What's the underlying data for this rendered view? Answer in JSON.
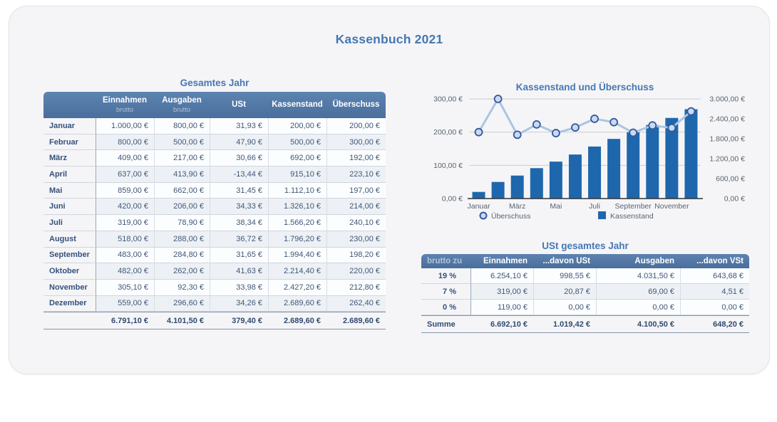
{
  "page_title": "Kassenbuch 2021",
  "colors": {
    "accent_blue": "#4677b4",
    "header_top": "#5d83b1",
    "header_bottom": "#4a6f9d",
    "bar": "#1f67ac",
    "line": "#a9c5e2",
    "marker_fill": "#c9d9f2",
    "marker_stroke": "#33589c",
    "gridline": "#c9cdd2",
    "baseline": "#2e3238"
  },
  "year_table": {
    "title": "Gesamtes Jahr",
    "columns": [
      {
        "label": "",
        "sub": ""
      },
      {
        "label": "Einnahmen",
        "sub": "brutto"
      },
      {
        "label": "Ausgaben",
        "sub": "brutto"
      },
      {
        "label": "USt",
        "sub": ""
      },
      {
        "label": "Kassenstand",
        "sub": ""
      },
      {
        "label": "Überschuss",
        "sub": ""
      }
    ],
    "rows": [
      {
        "label": "Januar",
        "values": [
          "1.000,00 €",
          "800,00 €",
          "31,93 €",
          "200,00 €",
          "200,00 €"
        ]
      },
      {
        "label": "Februar",
        "values": [
          "800,00 €",
          "500,00 €",
          "47,90 €",
          "500,00 €",
          "300,00 €"
        ]
      },
      {
        "label": "März",
        "values": [
          "409,00 €",
          "217,00 €",
          "30,66 €",
          "692,00 €",
          "192,00 €"
        ]
      },
      {
        "label": "April",
        "values": [
          "637,00 €",
          "413,90 €",
          "-13,44 €",
          "915,10 €",
          "223,10 €"
        ]
      },
      {
        "label": "Mai",
        "values": [
          "859,00 €",
          "662,00 €",
          "31,45 €",
          "1.112,10 €",
          "197,00 €"
        ]
      },
      {
        "label": "Juni",
        "values": [
          "420,00 €",
          "206,00 €",
          "34,33 €",
          "1.326,10 €",
          "214,00 €"
        ]
      },
      {
        "label": "Juli",
        "values": [
          "319,00 €",
          "78,90 €",
          "38,34 €",
          "1.566,20 €",
          "240,10 €"
        ]
      },
      {
        "label": "August",
        "values": [
          "518,00 €",
          "288,00 €",
          "36,72 €",
          "1.796,20 €",
          "230,00 €"
        ]
      },
      {
        "label": "September",
        "values": [
          "483,00 €",
          "284,80 €",
          "31,65 €",
          "1.994,40 €",
          "198,20 €"
        ]
      },
      {
        "label": "Oktober",
        "values": [
          "482,00 €",
          "262,00 €",
          "41,63 €",
          "2.214,40 €",
          "220,00 €"
        ]
      },
      {
        "label": "November",
        "values": [
          "305,10 €",
          "92,30 €",
          "33,98 €",
          "2.427,20 €",
          "212,80 €"
        ]
      },
      {
        "label": "Dezember",
        "values": [
          "559,00 €",
          "296,60 €",
          "34,26 €",
          "2.689,60 €",
          "262,40 €"
        ]
      }
    ],
    "sum_row": {
      "label": "",
      "values": [
        "6.791,10 €",
        "4.101,50 €",
        "379,40 €",
        "2.689,60 €",
        "2.689,60 €"
      ]
    }
  },
  "chart_data": {
    "type": "combo",
    "title": "Kassenstand und Überschuss",
    "categories": [
      "Januar",
      "Februar",
      "März",
      "April",
      "Mai",
      "Juni",
      "Juli",
      "August",
      "September",
      "Oktober",
      "November",
      "Dezember"
    ],
    "x_tick_labels": [
      "Januar",
      "März",
      "Mai",
      "Juli",
      "September",
      "November"
    ],
    "series": [
      {
        "name": "Überschuss",
        "type": "line",
        "axis": "left",
        "values": [
          200,
          300,
          192,
          223.1,
          197,
          214,
          240.1,
          230,
          198.2,
          220,
          212.8,
          262.4
        ]
      },
      {
        "name": "Kassenstand",
        "type": "bar",
        "axis": "right",
        "values": [
          200,
          500,
          692,
          915.1,
          1112.1,
          1326.1,
          1566.2,
          1796.2,
          1994.4,
          2214.4,
          2427.2,
          2689.6
        ]
      }
    ],
    "left_axis": {
      "min": 0,
      "max": 300,
      "ticks": [
        0,
        100,
        200,
        300
      ],
      "tick_labels": [
        "0,00 €",
        "100,00 €",
        "200,00 €",
        "300,00 €"
      ]
    },
    "right_axis": {
      "min": 0,
      "max": 3000,
      "ticks": [
        0,
        600,
        1200,
        1800,
        2400,
        3000
      ],
      "tick_labels": [
        "0,00 €",
        "600,00 €",
        "1.200,00 €",
        "1.800,00 €",
        "2.400,00 €",
        "3.000,00 €"
      ]
    },
    "legend": [
      {
        "label": "Überschuss",
        "marker": "circle"
      },
      {
        "label": "Kassenstand",
        "marker": "square"
      }
    ],
    "grid": true,
    "legend_position": "bottom"
  },
  "ust_table": {
    "title": "USt gesamtes Jahr",
    "columns": [
      "brutto zu",
      "Einnahmen",
      "...davon USt",
      "Ausgaben",
      "...davon VSt"
    ],
    "rows": [
      {
        "label": "19 %",
        "values": [
          "6.254,10 €",
          "998,55 €",
          "4.031,50 €",
          "643,68 €"
        ]
      },
      {
        "label": "7 %",
        "values": [
          "319,00 €",
          "20,87 €",
          "69,00 €",
          "4,51 €"
        ]
      },
      {
        "label": "0 %",
        "values": [
          "119,00 €",
          "0,00 €",
          "0,00 €",
          "0,00 €"
        ]
      }
    ],
    "sum_row": {
      "label": "Summe",
      "values": [
        "6.692,10 €",
        "1.019,42 €",
        "4.100,50 €",
        "648,20 €"
      ]
    }
  }
}
